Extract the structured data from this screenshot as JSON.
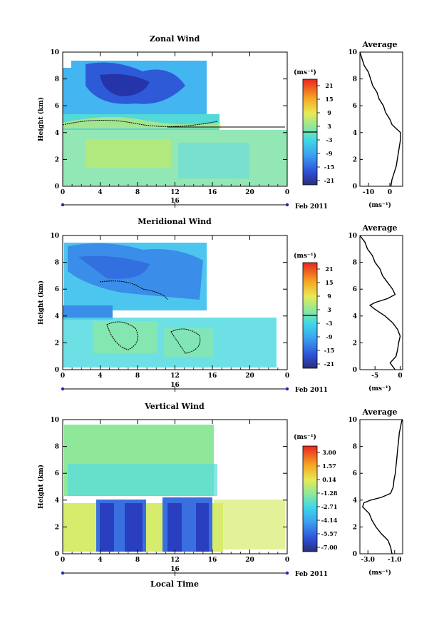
{
  "figure": {
    "x_axis_label": "Local Time",
    "date_label": "Feb 2011",
    "day_label": "16",
    "height_label": "Height (km)",
    "average_title": "Average",
    "unit_label": "(ms⁻¹)",
    "x_ticks": [
      "0",
      "4",
      "8",
      "12",
      "16",
      "20",
      "0"
    ],
    "y_ticks": [
      "0",
      "2",
      "4",
      "6",
      "8",
      "10"
    ]
  },
  "chart_data": [
    {
      "type": "heatmap",
      "title": "Zonal Wind",
      "xlabel": "",
      "ylabel": "Height (km)",
      "xlim": [
        0,
        24
      ],
      "ylim": [
        0,
        10
      ],
      "colorbar": {
        "labels": [
          "21",
          "15",
          "9",
          "3",
          "-3",
          "-9",
          "-15",
          "-21"
        ],
        "zero_line_at": "0"
      },
      "average_profile": {
        "x_ticks": [
          "-10",
          "0"
        ],
        "xlim": [
          -14,
          6
        ],
        "height": [
          0,
          0.5,
          1,
          1.5,
          2,
          2.5,
          3,
          3.5,
          4,
          4.3,
          4.6,
          5,
          5.5,
          6,
          6.5,
          7,
          7.5,
          8,
          8.5,
          9,
          9.5,
          10
        ],
        "value": [
          0.5,
          1,
          2,
          3,
          3.5,
          4,
          4.5,
          5,
          5,
          3,
          1,
          0,
          -2,
          -3,
          -5,
          -6,
          -8,
          -9,
          -10,
          -12,
          -13,
          -14
        ]
      }
    },
    {
      "type": "heatmap",
      "title": "Meridional Wind",
      "xlabel": "",
      "ylabel": "Height (km)",
      "xlim": [
        0,
        24
      ],
      "ylim": [
        0,
        10
      ],
      "colorbar": {
        "labels": [
          "21",
          "15",
          "9",
          "3",
          "-3",
          "-9",
          "-15",
          "-21"
        ],
        "zero_line_at": "0"
      },
      "average_profile": {
        "x_ticks": [
          "-5",
          "0"
        ],
        "xlim": [
          -8,
          0.5
        ],
        "height": [
          0,
          0.5,
          1,
          1.5,
          2,
          2.5,
          3,
          3.5,
          4,
          4.5,
          4.8,
          5,
          5.3,
          5.6,
          6,
          6.5,
          7,
          7.5,
          8,
          8.5,
          9,
          9.5,
          10
        ],
        "value": [
          -1,
          -2,
          -0.8,
          -0.5,
          -0.3,
          0,
          -0.5,
          -1.5,
          -3,
          -5,
          -6,
          -5,
          -2.5,
          -1,
          -1.5,
          -2.5,
          -3.5,
          -4,
          -5,
          -5.5,
          -6.5,
          -7,
          -8
        ]
      }
    },
    {
      "type": "heatmap",
      "title": "Vertical Wind",
      "xlabel": "Local Time",
      "ylabel": "Height (km)",
      "xlim": [
        0,
        24
      ],
      "ylim": [
        0,
        10
      ],
      "colorbar": {
        "labels": [
          "3.00",
          "1.57",
          "0.14",
          "-1.28",
          "-2.71",
          "-4.14",
          "-5.57",
          "-7.00"
        ],
        "zero_line_at": ""
      },
      "average_profile": {
        "x_ticks": [
          "-3.0",
          "-1.0"
        ],
        "xlim": [
          -3.6,
          -0.4
        ],
        "height": [
          0,
          0.5,
          1,
          1.5,
          2,
          2.5,
          3,
          3.5,
          3.8,
          4,
          4.2,
          4.5,
          5,
          5.5,
          6,
          6.5,
          7,
          7.5,
          8,
          8.5,
          9,
          9.5,
          10
        ],
        "value": [
          -1.2,
          -1.3,
          -1.5,
          -2,
          -2.4,
          -2.7,
          -2.9,
          -3.4,
          -3.3,
          -2.8,
          -2.0,
          -1.3,
          -1.1,
          -1.05,
          -0.95,
          -0.9,
          -0.85,
          -0.8,
          -0.75,
          -0.7,
          -0.65,
          -0.55,
          -0.45
        ]
      }
    }
  ]
}
